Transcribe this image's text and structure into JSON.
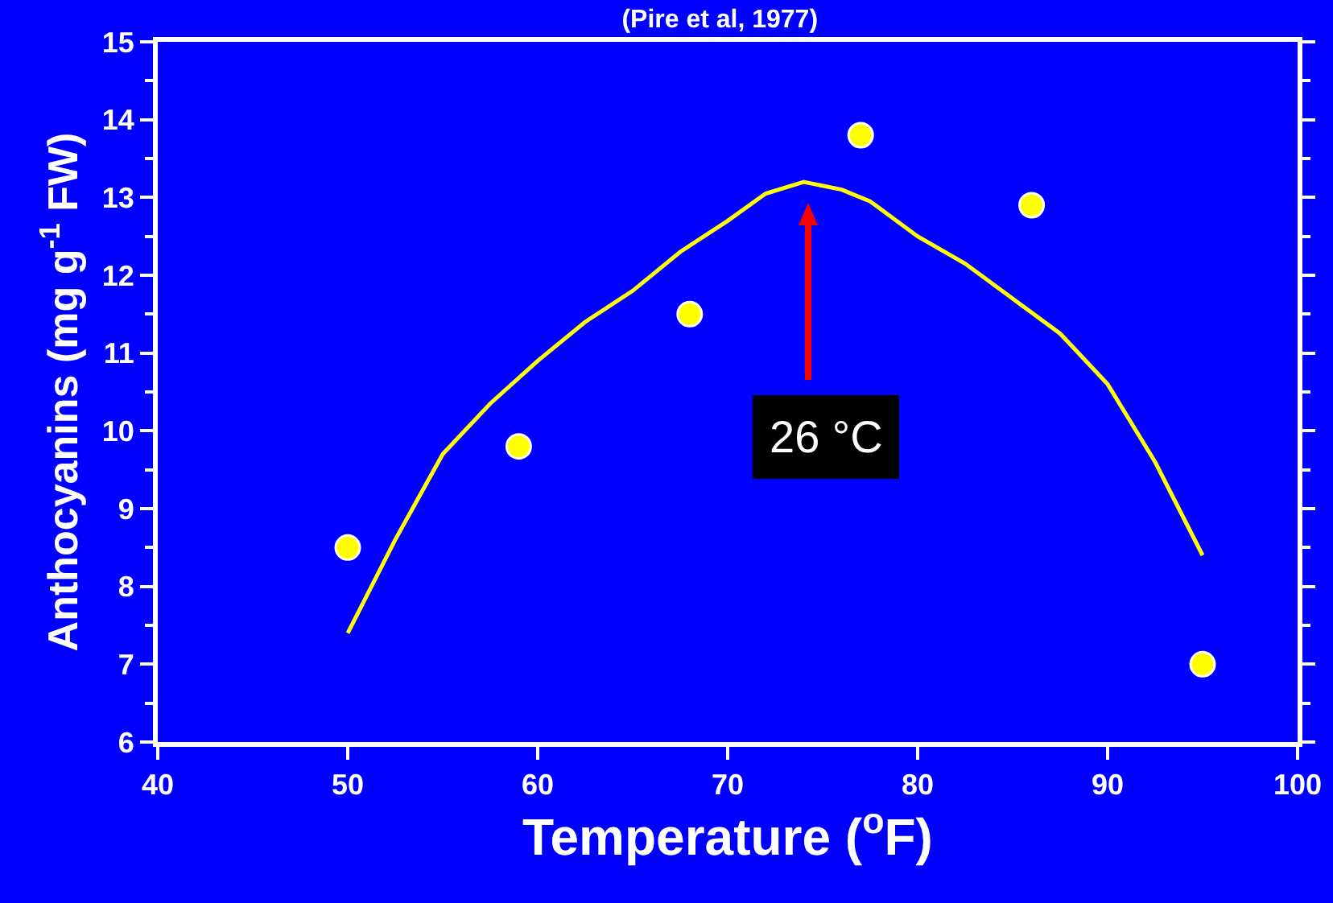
{
  "chart_data": {
    "type": "scatter",
    "title": "(Pire et al, 1977)",
    "xlabel": "Temperature ($^{o}$F)",
    "ylabel": "Anthocyanins (mg g$^{-1}$ FW)",
    "x": [
      50,
      59,
      68,
      77,
      86,
      95
    ],
    "series": [
      {
        "color": "#ffff00",
        "marker": "circle",
        "values": [
          8.5,
          9.8,
          11.5,
          13.8,
          12.9,
          7.0
        ]
      },
      {
        "type": "line",
        "color": "#ffff00",
        "marker": "none",
        "line_style": "solid",
        "x": [
          50,
          52.5,
          55,
          57.5,
          60,
          62.5,
          65,
          67.5,
          70,
          72,
          74,
          76,
          77.5,
          80,
          82.5,
          85,
          87.5,
          90,
          92.5,
          95
        ],
        "values": [
          7.4,
          8.6,
          9.7,
          10.35,
          10.9,
          11.4,
          11.8,
          12.3,
          12.7,
          13.05,
          13.2,
          13.1,
          12.95,
          12.5,
          12.15,
          11.7,
          11.25,
          10.6,
          9.6,
          8.4
        ]
      }
    ],
    "annotations": [
      "26 °C"
    ],
    "xlim": [
      40,
      100
    ],
    "xticks": [
      40,
      50,
      60,
      70,
      80,
      90,
      100
    ],
    "ylim": [
      6,
      15
    ],
    "yticks": [
      6,
      7,
      8,
      9,
      10,
      11,
      12,
      13,
      14,
      15
    ],
    "grid": false
  }
}
